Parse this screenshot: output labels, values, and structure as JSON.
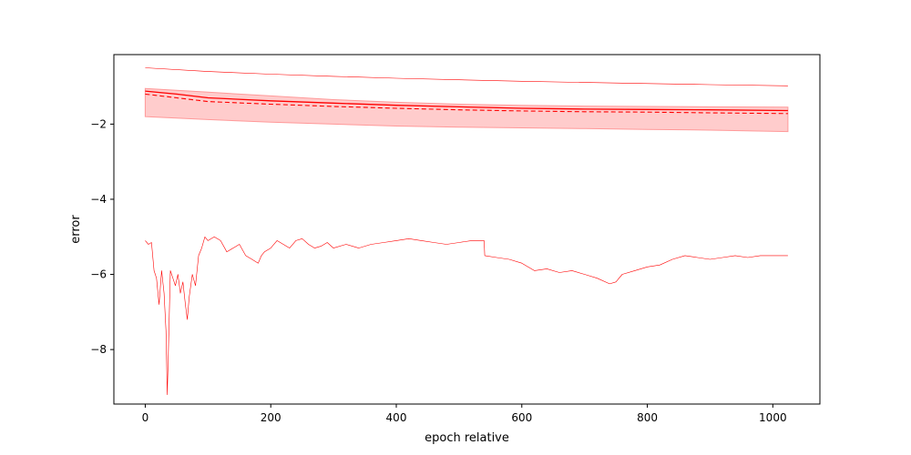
{
  "chart_data": {
    "type": "line",
    "title": "",
    "xlabel": "epoch relative",
    "ylabel": "error",
    "xlim": [
      -50,
      1075
    ],
    "ylim": [
      -9.45,
      -0.15
    ],
    "xticks": [
      0,
      200,
      400,
      600,
      800,
      1000
    ],
    "yticks": [
      -8,
      -6,
      -4,
      -2
    ],
    "xtick_labels": [
      "0",
      "200",
      "400",
      "600",
      "800",
      "1000"
    ],
    "ytick_labels": [
      "−8",
      "−6",
      "−4",
      "−2"
    ],
    "grid": false,
    "legend": "none",
    "colors": {
      "series": "#ff0000",
      "band": "#ff9999",
      "axis": "#000000"
    },
    "band": {
      "x": [
        0,
        100,
        200,
        300,
        400,
        500,
        600,
        700,
        800,
        900,
        1024
      ],
      "upper": [
        -1.05,
        -1.15,
        -1.25,
        -1.35,
        -1.42,
        -1.47,
        -1.5,
        -1.52,
        -1.53,
        -1.54,
        -1.55
      ],
      "lower": [
        -1.8,
        -1.88,
        -1.95,
        -2.0,
        -2.05,
        -2.08,
        -2.1,
        -2.12,
        -2.14,
        -2.16,
        -2.2
      ]
    },
    "series": [
      {
        "style": "thin-solid",
        "x": [
          0,
          100,
          200,
          300,
          400,
          500,
          600,
          700,
          800,
          900,
          1024
        ],
        "y": [
          -0.5,
          -0.6,
          -0.67,
          -0.73,
          -0.78,
          -0.82,
          -0.86,
          -0.89,
          -0.92,
          -0.95,
          -0.98
        ]
      },
      {
        "style": "solid",
        "x": [
          0,
          50,
          100,
          200,
          300,
          400,
          500,
          600,
          700,
          800,
          900,
          1024
        ],
        "y": [
          -1.12,
          -1.2,
          -1.3,
          -1.38,
          -1.44,
          -1.5,
          -1.54,
          -1.58,
          -1.6,
          -1.61,
          -1.62,
          -1.64
        ]
      },
      {
        "style": "dashed",
        "x": [
          0,
          50,
          100,
          200,
          300,
          400,
          500,
          600,
          700,
          800,
          900,
          1024
        ],
        "y": [
          -1.2,
          -1.3,
          -1.4,
          -1.47,
          -1.53,
          -1.58,
          -1.62,
          -1.65,
          -1.67,
          -1.68,
          -1.7,
          -1.72
        ]
      },
      {
        "style": "noisy",
        "x": [
          0,
          5,
          10,
          14,
          18,
          22,
          26,
          30,
          33,
          35,
          37,
          40,
          44,
          48,
          52,
          56,
          60,
          64,
          67,
          70,
          75,
          80,
          85,
          90,
          95,
          100,
          110,
          120,
          130,
          140,
          150,
          160,
          170,
          180,
          185,
          190,
          200,
          210,
          220,
          230,
          240,
          250,
          260,
          270,
          280,
          290,
          300,
          320,
          340,
          360,
          380,
          400,
          420,
          440,
          460,
          480,
          500,
          520,
          540,
          541,
          560,
          580,
          600,
          620,
          640,
          660,
          680,
          700,
          720,
          740,
          750,
          760,
          780,
          800,
          820,
          840,
          860,
          880,
          900,
          920,
          940,
          960,
          980,
          1000,
          1024
        ],
        "y": [
          -5.1,
          -5.2,
          -5.15,
          -5.9,
          -6.1,
          -6.8,
          -5.9,
          -6.5,
          -7.5,
          -9.2,
          -8.0,
          -5.9,
          -6.1,
          -6.3,
          -6.0,
          -6.5,
          -6.2,
          -6.8,
          -7.2,
          -6.6,
          -6.0,
          -6.3,
          -5.5,
          -5.3,
          -5.0,
          -5.1,
          -5.0,
          -5.1,
          -5.4,
          -5.3,
          -5.2,
          -5.5,
          -5.6,
          -5.7,
          -5.5,
          -5.4,
          -5.3,
          -5.1,
          -5.2,
          -5.3,
          -5.1,
          -5.05,
          -5.2,
          -5.3,
          -5.25,
          -5.15,
          -5.3,
          -5.2,
          -5.3,
          -5.2,
          -5.15,
          -5.1,
          -5.05,
          -5.1,
          -5.15,
          -5.2,
          -5.15,
          -5.1,
          -5.1,
          -5.5,
          -5.55,
          -5.6,
          -5.7,
          -5.9,
          -5.85,
          -5.95,
          -5.9,
          -6.0,
          -6.1,
          -6.25,
          -6.2,
          -6.0,
          -5.9,
          -5.8,
          -5.75,
          -5.6,
          -5.5,
          -5.55,
          -5.6,
          -5.55,
          -5.5,
          -5.55,
          -5.5,
          -5.5,
          -5.5
        ]
      }
    ]
  }
}
